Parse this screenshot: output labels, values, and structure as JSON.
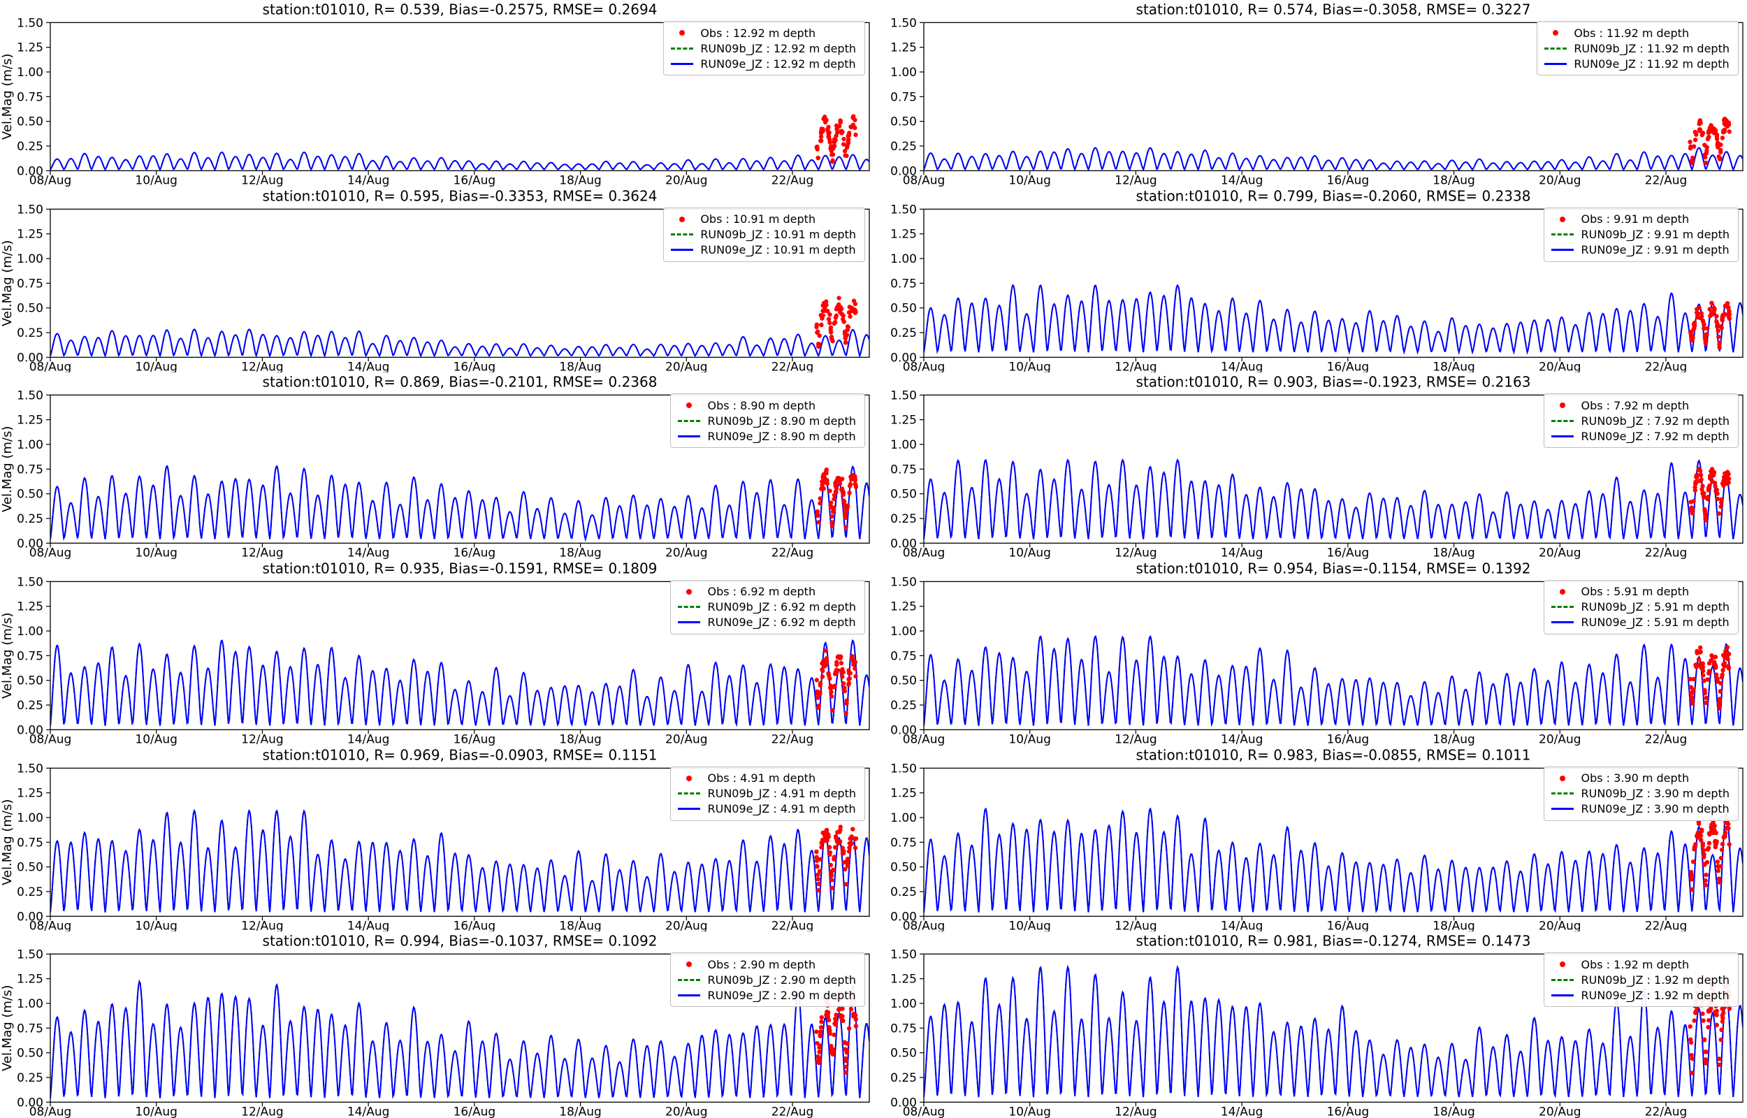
{
  "figure": {
    "background": "#ffffff",
    "ylabel": "Vel.Mag (m/s)",
    "station": "t01010"
  },
  "colors": {
    "obs": "#ff0000",
    "run09b": "#008000",
    "run09e": "#0000ff",
    "axes": "#000000"
  },
  "axes": {
    "ylim": [
      0,
      1.5
    ],
    "yticks": [
      0,
      0.25,
      0.5,
      0.75,
      1.0,
      1.25,
      1.5
    ],
    "ytick_labels": [
      "0.00",
      "0.25",
      "0.50",
      "0.75",
      "1.00",
      "1.25",
      "1.50"
    ],
    "xtick_days": [
      0,
      2,
      4,
      6,
      8,
      10,
      12,
      14
    ],
    "xtick_labels": [
      "08/Aug",
      "10/Aug",
      "12/Aug",
      "14/Aug",
      "16/Aug",
      "18/Aug",
      "20/Aug",
      "22/Aug"
    ],
    "t_max_days": 15.45,
    "x_start_date": "08/Aug"
  },
  "tide_model": {
    "lobe_period_days": 0.2588,
    "spring_peak_day": 3.2,
    "spring_period_days": 13.8,
    "diurnal_inequality": 0.76,
    "peak_sharpness": 1.3,
    "amp_jitter_min": 0.8,
    "amp_jitter_span": 0.4
  },
  "chart_data": [
    {
      "type": "line+scatter",
      "title": "station:t01010, R= 0.539, Bias=-0.2575, RMSE= 0.2694",
      "station": "t01010",
      "R": 0.539,
      "Bias": -0.2575,
      "RMSE": 0.2694,
      "depth_m": 12.92,
      "legend": [
        "Obs : 12.92 m depth",
        "RUN09b_JZ : 12.92 m depth",
        "RUN09e_JZ : 12.92 m depth"
      ],
      "model_series": {
        "name": "RUN09e_JZ",
        "baseline": 0.012,
        "peak_typical": 0.07,
        "peak_max": 0.17
      },
      "obs_series": {
        "name": "Obs",
        "t_start": 14.45,
        "t_end": 15.2,
        "y_min": 0.05,
        "y_max": 0.55,
        "n_points": 80
      }
    },
    {
      "type": "line+scatter",
      "title": "station:t01010, R= 0.574, Bias=-0.3058, RMSE= 0.3227",
      "station": "t01010",
      "R": 0.574,
      "Bias": -0.3058,
      "RMSE": 0.3227,
      "depth_m": 11.92,
      "legend": [
        "Obs : 11.92 m depth",
        "RUN09b_JZ : 11.92 m depth",
        "RUN09e_JZ : 11.92 m depth"
      ],
      "model_series": {
        "name": "RUN09e_JZ",
        "baseline": 0.012,
        "peak_typical": 0.09,
        "peak_max": 0.22
      },
      "obs_series": {
        "name": "Obs",
        "t_start": 14.45,
        "t_end": 15.2,
        "y_min": 0.05,
        "y_max": 0.55,
        "n_points": 80
      }
    },
    {
      "type": "line+scatter",
      "title": "station:t01010, R= 0.595, Bias=-0.3353, RMSE= 0.3624",
      "station": "t01010",
      "R": 0.595,
      "Bias": -0.3353,
      "RMSE": 0.3624,
      "depth_m": 10.91,
      "legend": [
        "Obs : 10.91 m depth",
        "RUN09b_JZ : 10.91 m depth",
        "RUN09e_JZ : 10.91 m depth"
      ],
      "model_series": {
        "name": "RUN09e_JZ",
        "baseline": 0.015,
        "peak_typical": 0.1,
        "peak_max": 0.26
      },
      "obs_series": {
        "name": "Obs",
        "t_start": 14.45,
        "t_end": 15.2,
        "y_min": 0.08,
        "y_max": 0.6,
        "n_points": 80
      }
    },
    {
      "type": "line+scatter",
      "title": "station:t01010, R= 0.799, Bias=-0.2060, RMSE= 0.2338",
      "station": "t01010",
      "R": 0.799,
      "Bias": -0.206,
      "RMSE": 0.2338,
      "depth_m": 9.91,
      "legend": [
        "Obs : 9.91 m depth",
        "RUN09b_JZ : 9.91 m depth",
        "RUN09e_JZ : 9.91 m depth"
      ],
      "model_series": {
        "name": "RUN09e_JZ",
        "baseline": 0.05,
        "peak_typical": 0.34,
        "peak_max": 0.66
      },
      "obs_series": {
        "name": "Obs",
        "t_start": 14.45,
        "t_end": 15.2,
        "y_min": 0.1,
        "y_max": 0.55,
        "n_points": 80
      }
    },
    {
      "type": "line+scatter",
      "title": "station:t01010, R= 0.869, Bias=-0.2101, RMSE= 0.2368",
      "station": "t01010",
      "R": 0.869,
      "Bias": -0.2101,
      "RMSE": 0.2368,
      "depth_m": 8.9,
      "legend": [
        "Obs : 8.90 m depth",
        "RUN09b_JZ : 8.90 m depth",
        "RUN09e_JZ : 8.90 m depth"
      ],
      "model_series": {
        "name": "RUN09e_JZ",
        "baseline": 0.04,
        "peak_typical": 0.38,
        "peak_max": 0.72
      },
      "obs_series": {
        "name": "Obs",
        "t_start": 14.45,
        "t_end": 15.2,
        "y_min": 0.15,
        "y_max": 0.75,
        "n_points": 80
      }
    },
    {
      "type": "line+scatter",
      "title": "station:t01010, R= 0.903, Bias=-0.1923, RMSE= 0.2163",
      "station": "t01010",
      "R": 0.903,
      "Bias": -0.1923,
      "RMSE": 0.2163,
      "depth_m": 7.92,
      "legend": [
        "Obs : 7.92 m depth",
        "RUN09b_JZ : 7.92 m depth",
        "RUN09e_JZ : 7.92 m depth"
      ],
      "model_series": {
        "name": "RUN09e_JZ",
        "baseline": 0.04,
        "peak_typical": 0.42,
        "peak_max": 0.78
      },
      "obs_series": {
        "name": "Obs",
        "t_start": 14.45,
        "t_end": 15.2,
        "y_min": 0.22,
        "y_max": 0.75,
        "n_points": 80
      }
    },
    {
      "type": "line+scatter",
      "title": "station:t01010, R= 0.935, Bias=-0.1591, RMSE= 0.1809",
      "station": "t01010",
      "R": 0.935,
      "Bias": -0.1591,
      "RMSE": 0.1809,
      "depth_m": 6.92,
      "legend": [
        "Obs : 6.92 m depth",
        "RUN09b_JZ : 6.92 m depth",
        "RUN09e_JZ : 6.92 m depth"
      ],
      "model_series": {
        "name": "RUN09e_JZ",
        "baseline": 0.04,
        "peak_typical": 0.46,
        "peak_max": 0.84
      },
      "obs_series": {
        "name": "Obs",
        "t_start": 14.45,
        "t_end": 15.2,
        "y_min": 0.15,
        "y_max": 0.8,
        "n_points": 80
      }
    },
    {
      "type": "line+scatter",
      "title": "station:t01010, R= 0.954, Bias=-0.1154, RMSE= 0.1392",
      "station": "t01010",
      "R": 0.954,
      "Bias": -0.1154,
      "RMSE": 0.1392,
      "depth_m": 5.91,
      "legend": [
        "Obs : 5.91 m depth",
        "RUN09b_JZ : 5.91 m depth",
        "RUN09e_JZ : 5.91 m depth"
      ],
      "model_series": {
        "name": "RUN09e_JZ",
        "baseline": 0.04,
        "peak_typical": 0.48,
        "peak_max": 0.88
      },
      "obs_series": {
        "name": "Obs",
        "t_start": 14.45,
        "t_end": 15.2,
        "y_min": 0.2,
        "y_max": 0.85,
        "n_points": 80
      }
    },
    {
      "type": "line+scatter",
      "title": "station:t01010, R= 0.969, Bias=-0.0903, RMSE= 0.1151",
      "station": "t01010",
      "R": 0.969,
      "Bias": -0.0903,
      "RMSE": 0.1151,
      "depth_m": 4.91,
      "legend": [
        "Obs : 4.91 m depth",
        "RUN09b_JZ : 4.91 m depth",
        "RUN09e_JZ : 4.91 m depth"
      ],
      "model_series": {
        "name": "RUN09e_JZ",
        "baseline": 0.04,
        "peak_typical": 0.52,
        "peak_max": 1.0
      },
      "obs_series": {
        "name": "Obs",
        "t_start": 14.45,
        "t_end": 15.2,
        "y_min": 0.25,
        "y_max": 0.95,
        "n_points": 80
      }
    },
    {
      "type": "line+scatter",
      "title": "station:t01010, R= 0.983, Bias=-0.0855, RMSE= 0.1011",
      "station": "t01010",
      "R": 0.983,
      "Bias": -0.0855,
      "RMSE": 0.1011,
      "depth_m": 3.9,
      "legend": [
        "Obs : 3.90 m depth",
        "RUN09b_JZ : 3.90 m depth",
        "RUN09e_JZ : 3.90 m depth"
      ],
      "model_series": {
        "name": "RUN09e_JZ",
        "baseline": 0.04,
        "peak_typical": 0.55,
        "peak_max": 1.02
      },
      "obs_series": {
        "name": "Obs",
        "t_start": 14.45,
        "t_end": 15.2,
        "y_min": 0.25,
        "y_max": 1.0,
        "n_points": 80
      }
    },
    {
      "type": "line+scatter",
      "title": "station:t01010, R= 0.994, Bias=-0.1037, RMSE= 0.1092",
      "station": "t01010",
      "R": 0.994,
      "Bias": -0.1037,
      "RMSE": 0.1092,
      "depth_m": 2.9,
      "legend": [
        "Obs : 2.90 m depth",
        "RUN09b_JZ : 2.90 m depth",
        "RUN09e_JZ : 2.90 m depth"
      ],
      "model_series": {
        "name": "RUN09e_JZ",
        "baseline": 0.04,
        "peak_typical": 0.58,
        "peak_max": 1.15
      },
      "obs_series": {
        "name": "Obs",
        "t_start": 14.45,
        "t_end": 15.2,
        "y_min": 0.3,
        "y_max": 1.12,
        "n_points": 80
      }
    },
    {
      "type": "line+scatter",
      "title": "station:t01010, R= 0.981, Bias=-0.1274, RMSE= 0.1473",
      "station": "t01010",
      "R": 0.981,
      "Bias": -0.1274,
      "RMSE": 0.1473,
      "depth_m": 1.92,
      "legend": [
        "Obs : 1.92 m depth",
        "RUN09b_JZ : 1.92 m depth",
        "RUN09e_JZ : 1.92 m depth"
      ],
      "model_series": {
        "name": "RUN09e_JZ",
        "baseline": 0.05,
        "peak_typical": 0.62,
        "peak_max": 1.28
      },
      "obs_series": {
        "name": "Obs",
        "t_start": 14.45,
        "t_end": 15.2,
        "y_min": 0.3,
        "y_max": 1.25,
        "n_points": 80
      }
    }
  ]
}
